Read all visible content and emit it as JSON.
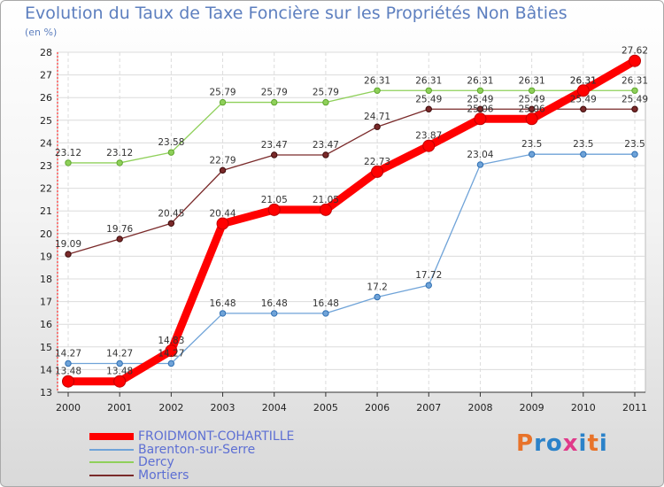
{
  "title": "Evolution du Taux de Taxe Foncière sur les Propriétés Non Bâties",
  "subtitle": "(en %)",
  "logo": {
    "text": "Proxiti",
    "colors": [
      "#e8732a",
      "#2b82c9",
      "#2b82c9",
      "#e03a8a",
      "#2b82c9",
      "#e8732a",
      "#2b82c9"
    ]
  },
  "chart_data": {
    "type": "line",
    "title": "Evolution du Taux de Taxe Foncière sur les Propriétés Non Bâties",
    "ylabel": "(en %)",
    "xlabel": "",
    "x": [
      "2000",
      "2001",
      "2002",
      "2003",
      "2004",
      "2005",
      "2006",
      "2007",
      "2008",
      "2009",
      "2010",
      "2011"
    ],
    "ylim": [
      13,
      28
    ],
    "yticks": [
      13,
      14,
      15,
      16,
      17,
      18,
      19,
      20,
      21,
      22,
      23,
      24,
      25,
      26,
      27,
      28
    ],
    "grid": true,
    "legend_position": "bottom-left",
    "series": [
      {
        "name": "FROIDMONT-COHARTILLE",
        "color": "#ff0000",
        "values": [
          13.48,
          13.48,
          14.83,
          20.44,
          21.05,
          21.05,
          22.73,
          23.87,
          25.06,
          25.06,
          26.31,
          27.62
        ],
        "labels": [
          "13.48",
          "13.48",
          "14.83",
          "20.44",
          "21.05",
          "21.05",
          "22.73",
          "23.87",
          "25.06",
          "25.06",
          "26.31",
          "27.62"
        ]
      },
      {
        "name": "Barenton-sur-Serre",
        "color": "#6fa3d8",
        "values": [
          14.27,
          14.27,
          14.27,
          16.48,
          16.48,
          16.48,
          17.2,
          17.72,
          23.04,
          23.5,
          23.5,
          23.5
        ],
        "labels": [
          "14.27",
          "14.27",
          "14.27",
          "16.48",
          "16.48",
          "16.48",
          "17.2",
          "17.72",
          "23.04",
          "23.5",
          "23.5",
          "23.5"
        ]
      },
      {
        "name": "Dercy",
        "color": "#8fd05a",
        "values": [
          23.12,
          23.12,
          23.58,
          25.79,
          25.79,
          25.79,
          26.31,
          26.31,
          26.31,
          26.31,
          26.31,
          26.31
        ],
        "labels": [
          "23.12",
          "23.12",
          "23.58",
          "25.79",
          "25.79",
          "25.79",
          "26.31",
          "26.31",
          "26.31",
          "26.31",
          "26.31",
          "26.31"
        ]
      },
      {
        "name": "Mortiers",
        "color": "#7a2a2a",
        "values": [
          19.09,
          19.76,
          20.45,
          22.79,
          23.47,
          23.47,
          24.71,
          25.49,
          25.49,
          25.49,
          25.49,
          25.49
        ],
        "labels": [
          "19.09",
          "19.76",
          "20.45",
          "22.79",
          "23.47",
          "23.47",
          "24.71",
          "25.49",
          "25.49",
          "25.49",
          "25.49",
          "25.49"
        ]
      }
    ]
  }
}
